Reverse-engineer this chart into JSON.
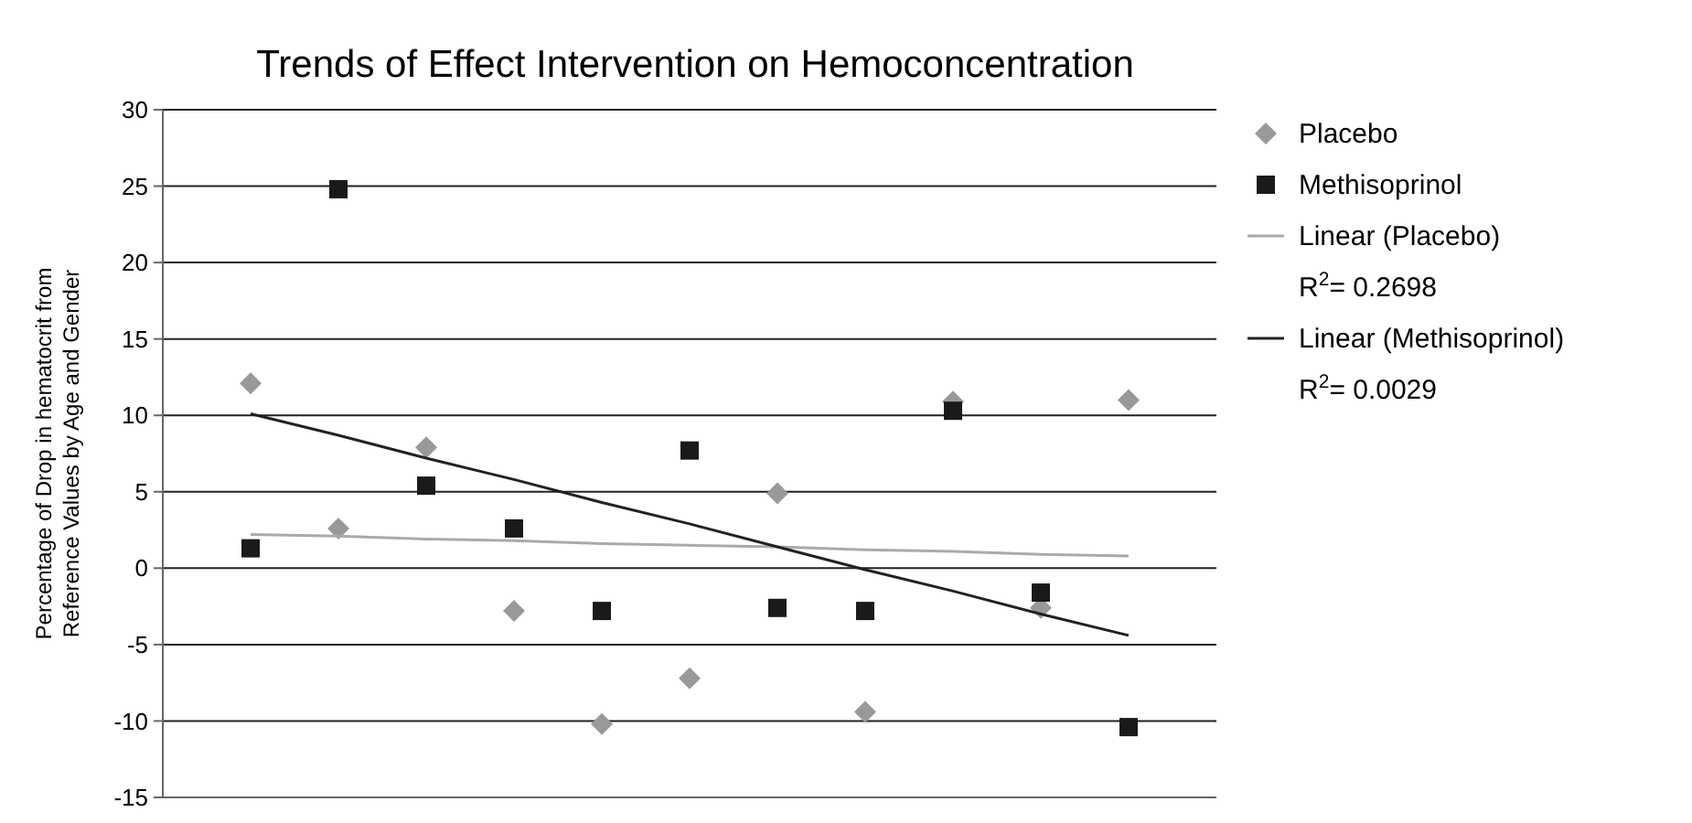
{
  "chart_data": {
    "type": "scatter",
    "title": "Trends of Effect Intervention on Hemoconcentration",
    "ylabel": "Percentage of Drop in hematocrit from Reference Values by Age and Gender",
    "categories": [
      null,
      null,
      null,
      null,
      null,
      null,
      null,
      null,
      null,
      null,
      null
    ],
    "ylim": [
      -15,
      30
    ],
    "yticks": [
      -15,
      -10,
      -5,
      0,
      5,
      10,
      15,
      20,
      25,
      30
    ],
    "grid": "y",
    "legend": "right",
    "series": [
      {
        "name": "Placebo",
        "color": "#999999",
        "marker": "diamond",
        "values": [
          12.1,
          2.6,
          7.9,
          -2.8,
          -10.2,
          -7.2,
          4.9,
          -9.4,
          10.9,
          -2.6,
          11.0
        ]
      },
      {
        "name": "Methisoprinol",
        "color": "#1a1a1a",
        "marker": "square",
        "values": [
          1.3,
          24.8,
          5.4,
          2.6,
          -2.8,
          7.7,
          -2.6,
          -2.8,
          10.3,
          -1.6,
          -10.4
        ]
      },
      {
        "name": "Linear (Placebo)",
        "type": "line",
        "color": "#aaaaaa",
        "marker": "none",
        "values": [
          2.2,
          2.1,
          1.9,
          1.8,
          1.6,
          1.5,
          1.4,
          1.2,
          1.1,
          0.9,
          0.8
        ]
      },
      {
        "name": "Linear (Methisoprinol)",
        "type": "line",
        "color": "#222222",
        "marker": "none",
        "values": [
          10.1,
          8.7,
          7.2,
          5.8,
          4.3,
          2.9,
          1.4,
          -0.1,
          -1.5,
          -3.0,
          -4.4
        ]
      }
    ],
    "annotations": [
      "R$^{2}$= 0.2698",
      "R$^{2}$= 0.0029"
    ]
  }
}
